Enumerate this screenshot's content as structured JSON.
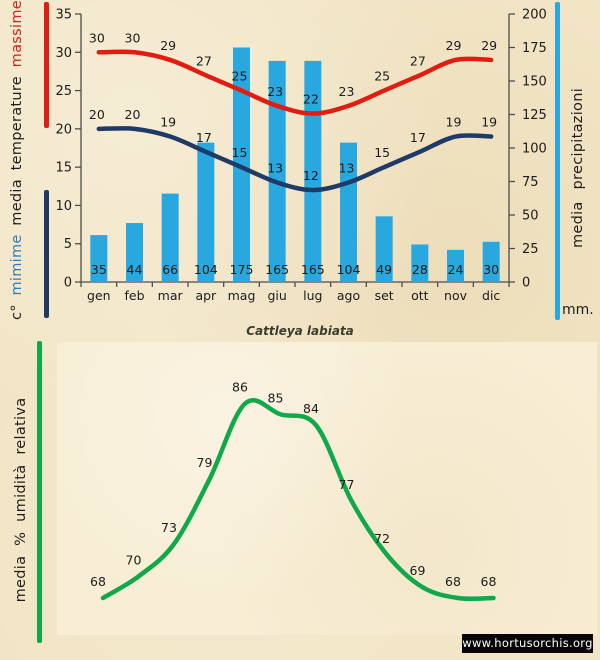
{
  "figure": {
    "title": "Cattleya labiata",
    "watermark": "www.hortusorchis.org"
  },
  "colors": {
    "background": "#f2e5c5",
    "panel": "#f8eed5",
    "max_line": "#e11c10",
    "min_line": "#1f3a67",
    "bars": "#29a7df",
    "humidity_line": "#0fa84b",
    "massime_text": "#cf2020",
    "mimime_text": "#2d7bbb"
  },
  "left_rail": {
    "unit": "c°",
    "min_label": "mimime",
    "mid_label_1": "media",
    "mid_label_2": "temperature",
    "max_label": "massime"
  },
  "right_rail": {
    "label": "media precipitazioni",
    "unit": "mm."
  },
  "bottom_rail": {
    "label": "media % umidità relativa"
  },
  "chart_data": [
    {
      "name": "climate-chart",
      "type": "combo-line-bar",
      "categories": [
        "gen",
        "feb",
        "mar",
        "apr",
        "mag",
        "giu",
        "lug",
        "ago",
        "set",
        "ott",
        "nov",
        "dic"
      ],
      "series": [
        {
          "name": "massime",
          "type": "line",
          "axis": "left",
          "values": [
            30,
            30,
            29,
            27,
            25,
            23,
            22,
            23,
            25,
            27,
            29,
            29
          ]
        },
        {
          "name": "mimime",
          "type": "line",
          "axis": "left",
          "values": [
            20,
            20,
            19,
            17,
            15,
            13,
            12,
            13,
            15,
            17,
            19,
            19
          ]
        },
        {
          "name": "media precipitazioni",
          "type": "bar",
          "axis": "right",
          "values": [
            35,
            44,
            66,
            104,
            175,
            165,
            165,
            104,
            49,
            28,
            24,
            30
          ]
        }
      ],
      "left_axis": {
        "title": "media temperature c°",
        "range": [
          0,
          35
        ],
        "ticks": [
          35,
          30,
          25,
          20,
          15,
          10,
          5,
          0
        ]
      },
      "right_axis": {
        "title": "media precipitazioni mm.",
        "range": [
          0,
          200
        ],
        "ticks": [
          200,
          175,
          150,
          125,
          100,
          75,
          50,
          25,
          0
        ]
      },
      "grid": false,
      "legend": "none"
    },
    {
      "name": "humidity-chart",
      "type": "line",
      "series": [
        {
          "name": "media % umidità relativa",
          "values": [
            68,
            70,
            73,
            79,
            86,
            85,
            84,
            77,
            72,
            69,
            68,
            68
          ]
        }
      ],
      "ylim": [
        66,
        88
      ],
      "grid": false,
      "legend": "none"
    }
  ]
}
